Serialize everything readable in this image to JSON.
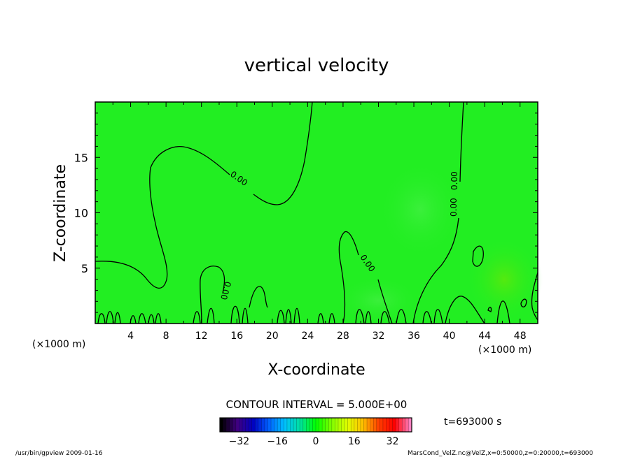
{
  "chart_data": {
    "type": "contour",
    "title": "vertical velocity",
    "xlabel": "X-coordinate",
    "ylabel": "Z-coordinate",
    "x_unit": "(×1000 m)",
    "x_unit_right": "(×1000 m)",
    "xlim": [
      0,
      50
    ],
    "ylim": [
      0,
      20
    ],
    "x_ticks": [
      4,
      8,
      12,
      16,
      20,
      24,
      28,
      32,
      36,
      40,
      44,
      48
    ],
    "y_ticks": [
      5,
      10,
      15
    ],
    "contour_interval": "CONTOUR INTERVAL = 5.000E+00",
    "contour_labels": [
      "0.00",
      "0.00",
      "0.00",
      "0.00",
      "0.00"
    ],
    "time_label": "t=693000 s",
    "colorbar": {
      "min": -40,
      "max": 40,
      "ticks": [
        -32,
        -16,
        0,
        16,
        32
      ],
      "colors": [
        "#000000",
        "#400080",
        "#0000c0",
        "#0060ff",
        "#00c0ff",
        "#00e0a0",
        "#00ff00",
        "#80ff00",
        "#e0ff00",
        "#ffc000",
        "#ff4000",
        "#ff0000",
        "#ff80c0"
      ]
    },
    "field_color": "#22ee22",
    "grid": false
  },
  "footer": {
    "left": "/usr/bin/gpview   2009-01-16",
    "right": "MarsCond_VelZ.nc@VelZ,x=0:50000,z=0:20000,t=693000"
  }
}
